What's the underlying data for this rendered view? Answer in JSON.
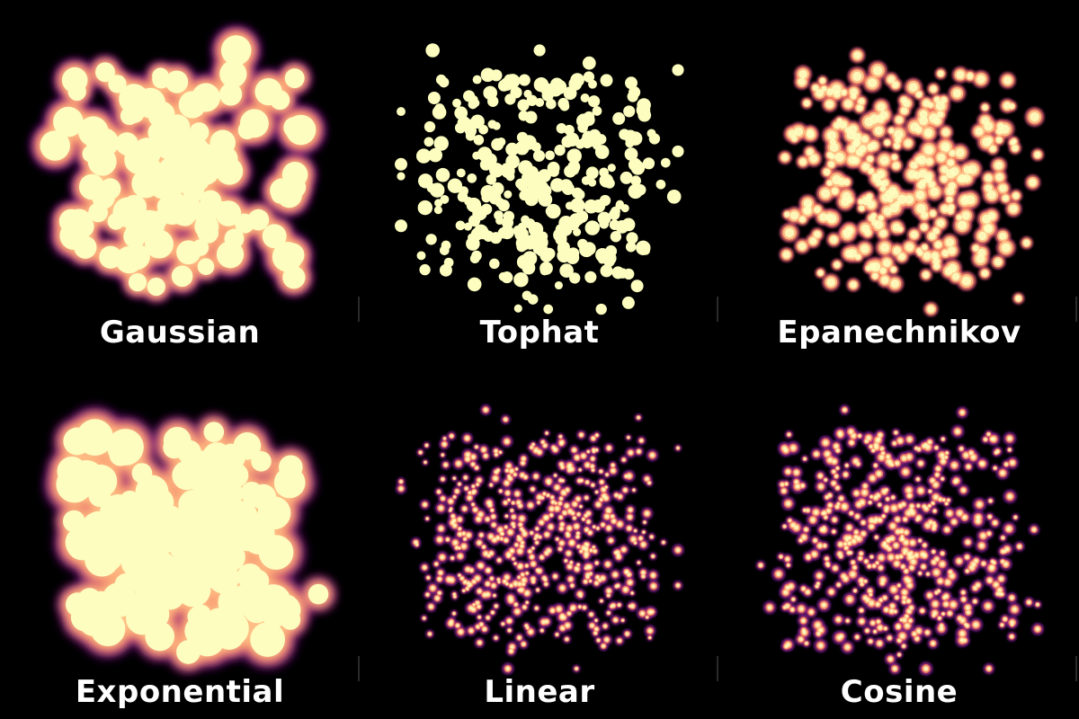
{
  "panels": [
    {
      "label": "Gaussian",
      "style": "blob",
      "seed": 11,
      "count": 120,
      "radius": 14,
      "blur": 5,
      "spread": 1.0
    },
    {
      "label": "Tophat",
      "style": "dots",
      "seed": 23,
      "count": 330,
      "radius": 6.5,
      "blur": 0,
      "spread": 1.0
    },
    {
      "label": "Epanechnikov",
      "style": "mid",
      "seed": 37,
      "count": 300,
      "radius": 7.5,
      "blur": 1.4,
      "spread": 1.0
    },
    {
      "label": "Exponential",
      "style": "blob",
      "seed": 41,
      "count": 140,
      "radius": 17,
      "blur": 6,
      "spread": 0.95
    },
    {
      "label": "Linear",
      "style": "sparse",
      "seed": 53,
      "count": 520,
      "radius": 4.0,
      "blur": 1.2,
      "spread": 1.0
    },
    {
      "label": "Cosine",
      "style": "sparse",
      "seed": 67,
      "count": 480,
      "radius": 4.6,
      "blur": 1.3,
      "spread": 1.0
    }
  ],
  "colors": {
    "background": "#000000",
    "core": "#fcfdbf",
    "warm": "#fec287",
    "orange": "#fb8761",
    "magenta": "#b73779",
    "violet": "#51127c"
  }
}
